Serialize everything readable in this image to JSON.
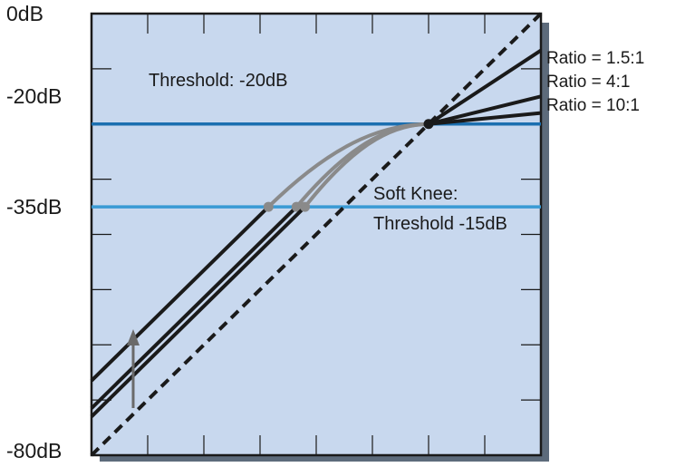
{
  "chart_data": {
    "type": "line",
    "ylim_db": [
      -80,
      0
    ],
    "y_tick_labels": [
      {
        "label": "0dB",
        "value": 0
      },
      {
        "label": "-20dB",
        "value": -20
      },
      {
        "label": "-35dB",
        "value": -35
      },
      {
        "label": "-80dB",
        "value": -80
      }
    ],
    "threshold": {
      "label": "Threshold: -20dB",
      "value_db": -20,
      "color": "#1b6fb0"
    },
    "soft_knee": {
      "label_line1": "Soft Knee:",
      "label_line2": "Threshold -15dB",
      "value_db": -35,
      "color": "#3a9ad4"
    },
    "unity_line": {
      "style": "dashed"
    },
    "series": [
      {
        "name": "Ratio = 1.5:1",
        "ratio": 1.5
      },
      {
        "name": "Ratio = 4:1",
        "ratio": 4
      },
      {
        "name": "Ratio = 10:1",
        "ratio": 10
      }
    ],
    "knee_color": "#8a8a8a",
    "line_color": "#1a1a1a",
    "plot_bg": "#c8d8ee",
    "shadow": "#5d6b7b",
    "grid": false
  }
}
